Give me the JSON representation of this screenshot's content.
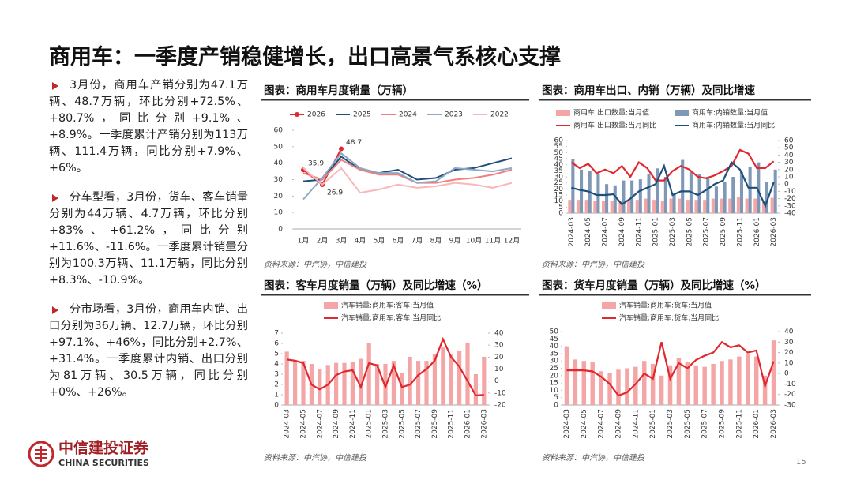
{
  "header": {
    "title": "商用车：一季度产销稳健增长，出口高景气系核心支撑"
  },
  "bullets": [
    "3月份，商用车产销分别为47.1万辆、48.7万辆，环比分别+72.5%、+80.7%，同比分别+9.1%、+8.9%。一季度累计产销分别为113万辆、111.4万辆，同比分别+7.9%、+6%。",
    "分车型看，3月份，货车、客车销量分别为44万辆、4.7万辆，环比分别+83%、+61.2%，同比分别+11.6%、-11.6%。一季度累计销量分别为100.3万辆、11.1万辆，同比分别+8.3%、-10.9%。",
    "分市场看，3月份，商用车内销、出口分别为36万辆、12.7万辆，环比分别+97.1%、+46%，同比分别+2.7%、+31.4%。一季度累计内销、出口分别为81万辆、30.5万辆，同比分别+0%、+26%。"
  ],
  "chart_data": [
    {
      "type": "line",
      "title": "图表：商用车月度销量（万辆）",
      "source": "资料来源：中汽协，中信建投",
      "categories": [
        "1月",
        "2月",
        "3月",
        "4月",
        "5月",
        "6月",
        "7月",
        "8月",
        "9月",
        "10月",
        "11月",
        "12月"
      ],
      "series": [
        {
          "name": "2026",
          "color": "#e0282e",
          "marker": "circle",
          "data_labels": true,
          "values": [
            35.9,
            26.9,
            48.7,
            null,
            null,
            null,
            null,
            null,
            null,
            null,
            null,
            null
          ]
        },
        {
          "name": "2025",
          "color": "#1f4e79",
          "values": [
            29,
            30,
            44,
            36,
            34,
            36,
            30,
            31,
            36,
            37,
            40,
            43
          ]
        },
        {
          "name": "2024",
          "color": "#f08080",
          "values": [
            34,
            30,
            42,
            36,
            33,
            33,
            28,
            28,
            30,
            31,
            33,
            36
          ]
        },
        {
          "name": "2023",
          "color": "#8ea9c8",
          "values": [
            18,
            31,
            46,
            37,
            34,
            34,
            28,
            29,
            37,
            36,
            35,
            37
          ]
        },
        {
          "name": "2022",
          "color": "#f6b8b8",
          "values": [
            37,
            27,
            37,
            22,
            24,
            27,
            25,
            26,
            28,
            27,
            25,
            28
          ]
        }
      ],
      "ylim": [
        0,
        60
      ],
      "yticks": [
        0,
        10,
        20,
        30,
        40,
        50,
        60
      ],
      "legend": "top"
    },
    {
      "type": "bar",
      "title": "图表：商用车出口、内销（万辆）及同比增速",
      "source": "资料来源：中汽协，中信建投",
      "categories": [
        "2024-03",
        null,
        "2024-05",
        null,
        "2024-07",
        null,
        "2024-09",
        null,
        "2024-11",
        null,
        "2025-01",
        null,
        "2025-03",
        null,
        "2025-05",
        null,
        "2025-07",
        null,
        "2025-09",
        null,
        "2025-11",
        null,
        "2026-01",
        null,
        "2026-03"
      ],
      "series": [
        {
          "name": "商用车:出口数量:当月值",
          "color": "#f4a6a6",
          "mark": "bar",
          "values": [
            11,
            11,
            11,
            10,
            10,
            10,
            10,
            11,
            11,
            12,
            11,
            10,
            12,
            12,
            11,
            11,
            11,
            12,
            12,
            12,
            13,
            12,
            12,
            10,
            12.7
          ]
        },
        {
          "name": "商用车:内销数量:当月值",
          "color": "#7f98b8",
          "mark": "bar",
          "values": [
            45,
            36,
            35,
            32,
            24,
            23,
            27,
            27,
            28,
            32,
            37,
            30,
            16,
            44,
            34,
            32,
            30,
            22,
            26,
            30,
            34,
            38,
            42,
            26,
            36
          ]
        },
        {
          "name": "商用车:出口数量:当月同比",
          "color": "#e0282e",
          "mark": "line",
          "axis": "y2",
          "values": [
            30,
            22,
            28,
            15,
            20,
            15,
            25,
            10,
            30,
            22,
            5,
            5,
            18,
            25,
            20,
            10,
            8,
            12,
            18,
            25,
            47,
            42,
            22,
            22,
            31.4
          ]
        },
        {
          "name": "商用车:内销数量:当月同比",
          "color": "#1f4e79",
          "mark": "line",
          "axis": "y2",
          "values": [
            -5,
            -8,
            -10,
            -15,
            -15,
            -14,
            -28,
            -20,
            -10,
            -5,
            0,
            25,
            -15,
            -10,
            -10,
            -15,
            -8,
            0,
            5,
            30,
            20,
            -5,
            -5,
            -30,
            2.7
          ]
        }
      ],
      "ylim": [
        0,
        60
      ],
      "yticks": [
        0,
        5,
        10,
        15,
        20,
        25,
        30,
        35,
        40,
        45,
        50,
        55,
        60
      ],
      "y2lim": [
        -40,
        60
      ],
      "y2ticks": [
        -40,
        -30,
        -20,
        -10,
        0,
        10,
        20,
        30,
        40,
        50,
        60
      ],
      "legend": "top"
    },
    {
      "type": "bar",
      "title": "图表：客车月度销量（万辆）及同比增速（%）",
      "source": "资料来源：中汽协，中信建投",
      "categories": [
        "2024-03",
        null,
        "2024-05",
        null,
        "2024-07",
        null,
        "2024-09",
        null,
        "2024-11",
        null,
        "2025-01",
        null,
        "2025-03",
        null,
        "2025-05",
        null,
        "2025-07",
        null,
        "2025-09",
        null,
        "2025-11",
        null,
        "2026-01",
        null,
        "2026-03"
      ],
      "series": [
        {
          "name": "汽车销量:商用车:客车:当月值",
          "color": "#f4a6a6",
          "mark": "bar",
          "values": [
            5.2,
            4.3,
            4.3,
            4.0,
            3.5,
            3.9,
            4.1,
            4.1,
            4.2,
            4.5,
            6.0,
            4.0,
            4.0,
            4.3,
            3.1,
            4.7,
            4.3,
            4.3,
            5.0,
            5.6,
            4.9,
            5.3,
            6.0,
            3.0,
            4.7
          ]
        },
        {
          "name": "汽车销量:商用车:客车:当月同比",
          "color": "#e0282e",
          "mark": "line",
          "axis": "y2",
          "values": [
            18,
            17,
            15,
            -3,
            -7,
            -3,
            5,
            8,
            9,
            -5,
            15,
            13,
            -5,
            13,
            -5,
            -3,
            5,
            10,
            17,
            35,
            20,
            12,
            0,
            -12,
            -11.6
          ]
        }
      ],
      "ylim": [
        0,
        7
      ],
      "yticks": [
        0,
        1,
        2,
        3,
        4,
        5,
        6,
        7
      ],
      "y2lim": [
        -20,
        40
      ],
      "y2ticks": [
        -20,
        -10,
        0,
        10,
        20,
        30,
        40
      ],
      "legend": "top"
    },
    {
      "type": "bar",
      "title": "图表：货车月度销量（万辆）及同比增速（%）",
      "source": "资料来源：中汽协，中信建投",
      "categories": [
        "2024-03",
        null,
        "2024-05",
        null,
        "2024-07",
        null,
        "2024-09",
        null,
        "2024-11",
        null,
        "2025-01",
        null,
        "2025-03",
        null,
        "2025-05",
        null,
        "2025-07",
        null,
        "2025-09",
        null,
        "2025-11",
        null,
        "2026-01",
        null,
        "2026-03"
      ],
      "series": [
        {
          "name": "汽车销量:商用车:货车:当月值",
          "color": "#f4a6a6",
          "mark": "bar",
          "values": [
            40,
            31,
            30,
            29,
            23,
            22,
            24,
            25,
            26,
            30,
            28,
            20,
            27,
            32,
            29,
            27,
            26,
            28,
            30,
            31,
            33,
            35,
            33,
            20,
            44
          ]
        },
        {
          "name": "汽车销量:商用车:货车:当月同比",
          "color": "#e0282e",
          "mark": "line",
          "axis": "y2",
          "values": [
            3,
            3,
            3,
            2,
            -3,
            -10,
            -21,
            -18,
            -10,
            0,
            -5,
            30,
            -5,
            10,
            5,
            13,
            17,
            20,
            30,
            25,
            27,
            20,
            22,
            -12,
            11.6
          ]
        }
      ],
      "ylim": [
        0,
        50
      ],
      "yticks": [
        0,
        5,
        10,
        15,
        20,
        25,
        30,
        35,
        40,
        45,
        50
      ],
      "y2lim": [
        -30,
        40
      ],
      "y2ticks": [
        -30,
        -20,
        -10,
        0,
        10,
        20,
        30,
        40
      ],
      "legend": "top"
    }
  ],
  "footer": {
    "logo_cn": "中信建投证券",
    "logo_en": "CHINA SECURITIES",
    "page": "15"
  }
}
